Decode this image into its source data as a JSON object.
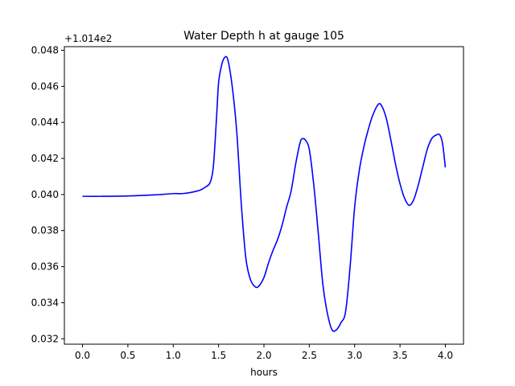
{
  "chart_data": {
    "type": "line",
    "title": "Water Depth h at gauge 105",
    "xlabel": "hours",
    "ylabel": "",
    "y_offset_label": "+1.014e2",
    "xlim": [
      -0.2,
      4.2
    ],
    "ylim": [
      0.0317,
      0.0482
    ],
    "x_ticks": [
      0.0,
      0.5,
      1.0,
      1.5,
      2.0,
      2.5,
      3.0,
      3.5,
      4.0
    ],
    "x_tick_labels": [
      "0.0",
      "0.5",
      "1.0",
      "1.5",
      "2.0",
      "2.5",
      "3.0",
      "3.5",
      "4.0"
    ],
    "y_ticks": [
      0.032,
      0.034,
      0.036,
      0.038,
      0.04,
      0.042,
      0.044,
      0.046,
      0.048
    ],
    "y_tick_labels": [
      "0.032",
      "0.034",
      "0.036",
      "0.038",
      "0.040",
      "0.042",
      "0.044",
      "0.046",
      "0.048"
    ],
    "grid": false,
    "series": [
      {
        "color": "#0000ff",
        "x": [
          0.0,
          0.2,
          0.5,
          0.8,
          1.0,
          1.1,
          1.2,
          1.3,
          1.35,
          1.4,
          1.43,
          1.45,
          1.48,
          1.5,
          1.53,
          1.56,
          1.6,
          1.65,
          1.7,
          1.75,
          1.8,
          1.85,
          1.9,
          1.94,
          2.0,
          2.05,
          2.1,
          2.15,
          2.2,
          2.25,
          2.3,
          2.35,
          2.4,
          2.43,
          2.46,
          2.5,
          2.55,
          2.6,
          2.65,
          2.7,
          2.75,
          2.8,
          2.85,
          2.9,
          2.95,
          3.0,
          3.05,
          3.1,
          3.15,
          3.2,
          3.26,
          3.3,
          3.35,
          3.4,
          3.45,
          3.5,
          3.55,
          3.6,
          3.65,
          3.7,
          3.75,
          3.8,
          3.85,
          3.9,
          3.94,
          3.97,
          4.0
        ],
        "y": [
          0.0399,
          0.0399,
          0.03992,
          0.03998,
          0.04005,
          0.04005,
          0.04012,
          0.04025,
          0.0404,
          0.0406,
          0.0411,
          0.042,
          0.0445,
          0.0462,
          0.0471,
          0.04755,
          0.0475,
          0.046,
          0.0435,
          0.0395,
          0.0365,
          0.0353,
          0.0349,
          0.0349,
          0.0354,
          0.0362,
          0.0369,
          0.0375,
          0.0383,
          0.0393,
          0.0402,
          0.0417,
          0.0429,
          0.0431,
          0.043,
          0.0425,
          0.0405,
          0.0378,
          0.035,
          0.0334,
          0.0325,
          0.0325,
          0.0329,
          0.0335,
          0.036,
          0.0393,
          0.0413,
          0.0426,
          0.0436,
          0.0444,
          0.045,
          0.0449,
          0.0442,
          0.043,
          0.0417,
          0.0406,
          0.0398,
          0.0394,
          0.0397,
          0.0405,
          0.0415,
          0.0425,
          0.0431,
          0.0433,
          0.0433,
          0.0428,
          0.0415
        ]
      }
    ]
  }
}
